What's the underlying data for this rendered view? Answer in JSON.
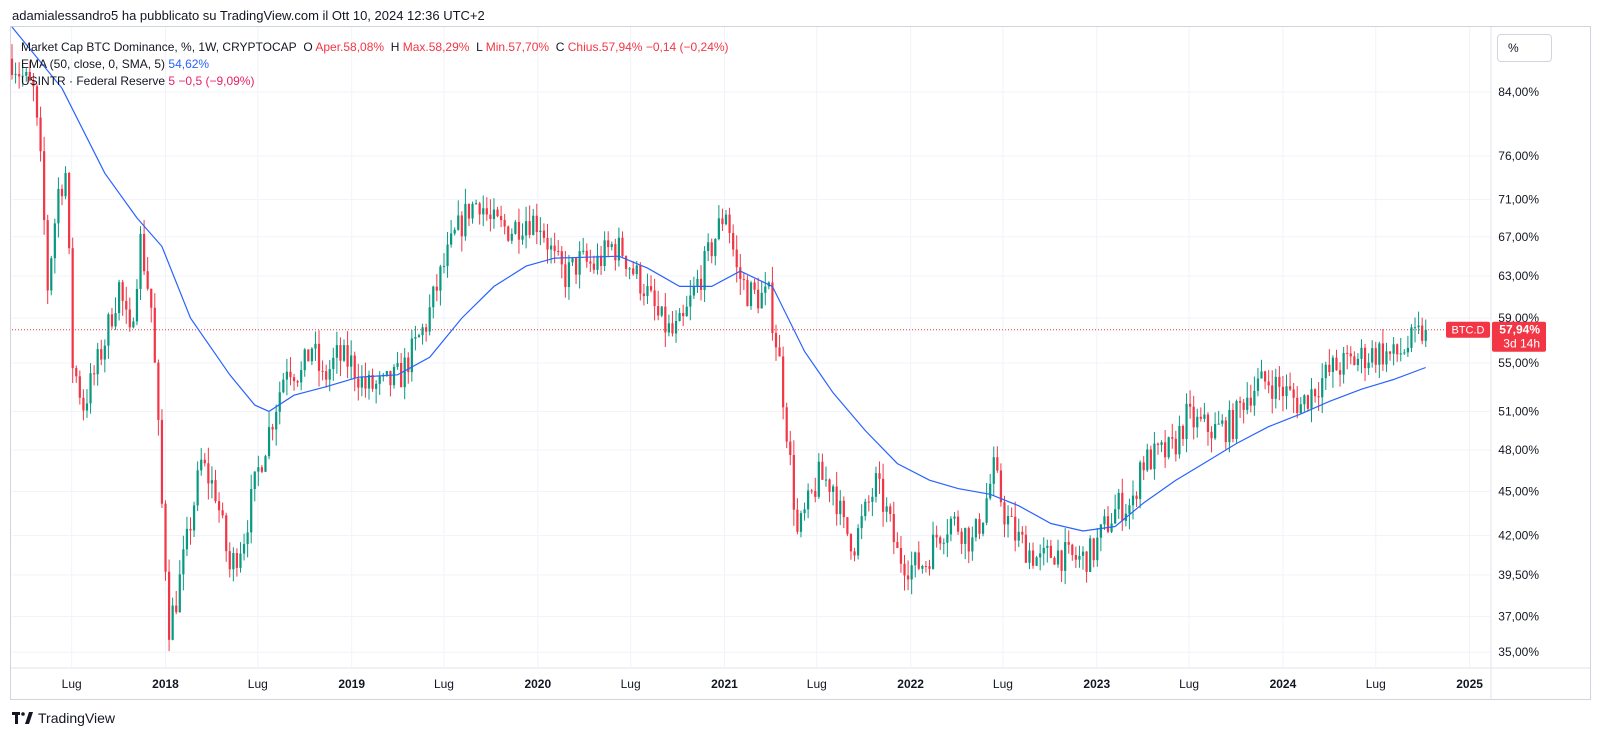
{
  "header": {
    "text": "adamialessandro5 ha pubblicato su TradingView.com il Ott 10, 2024 12:36 UTC+2"
  },
  "legend": {
    "main": {
      "label": "Market Cap BTC Dominance, %, 1W, CRYPTOCAP",
      "o_label": "O",
      "o_text": "Aper.58,08%",
      "h_label": "H",
      "h_text": "Max.58,29%",
      "l_label": "L",
      "l_text": "Min.57,70%",
      "c_label": "C",
      "c_text": "Chius.57,94%",
      "change": "−0,14 (−0,24%)"
    },
    "ema": {
      "label": "EMA (50, close, 0, SMA, 5)",
      "value": "54,62%"
    },
    "usintr": {
      "label": "USINTR · Federal Reserve",
      "value": "5",
      "change": "−0,5 (−9,09%)"
    }
  },
  "scale_button": {
    "label": "%"
  },
  "footer": {
    "brand": "TradingView"
  },
  "colors": {
    "up": "#089981",
    "down": "#f23645",
    "ema": "#2962ff",
    "last_price": "#f23645",
    "grid": "#f0f3fa"
  },
  "chart_data": {
    "type": "candlestick",
    "title": "Market Cap BTC Dominance, %, 1W, CRYPTOCAP",
    "y_scale": "log",
    "y_ticks": [
      {
        "value": 84,
        "label": "84,00%"
      },
      {
        "value": 76,
        "label": "76,00%"
      },
      {
        "value": 71,
        "label": "71,00%"
      },
      {
        "value": 67,
        "label": "67,00%"
      },
      {
        "value": 63,
        "label": "63,00%"
      },
      {
        "value": 59,
        "label": "59,00%"
      },
      {
        "value": 55,
        "label": "55,00%"
      },
      {
        "value": 51,
        "label": "51,00%"
      },
      {
        "value": 48,
        "label": "48,00%"
      },
      {
        "value": 45,
        "label": "45,00%"
      },
      {
        "value": 42,
        "label": "42,00%"
      },
      {
        "value": 39.5,
        "label": "39,50%"
      },
      {
        "value": 37,
        "label": "37,00%"
      },
      {
        "value": 35,
        "label": "35,00%"
      }
    ],
    "x_ticks": [
      {
        "date": "2017-07-01",
        "label": "Lug",
        "bold": false
      },
      {
        "date": "2018-01-01",
        "label": "2018",
        "bold": true
      },
      {
        "date": "2018-07-01",
        "label": "Lug",
        "bold": false
      },
      {
        "date": "2019-01-01",
        "label": "2019",
        "bold": true
      },
      {
        "date": "2019-07-01",
        "label": "Lug",
        "bold": false
      },
      {
        "date": "2020-01-01",
        "label": "2020",
        "bold": true
      },
      {
        "date": "2020-07-01",
        "label": "Lug",
        "bold": false
      },
      {
        "date": "2021-01-01",
        "label": "2021",
        "bold": true
      },
      {
        "date": "2021-07-01",
        "label": "Lug",
        "bold": false
      },
      {
        "date": "2022-01-01",
        "label": "2022",
        "bold": true
      },
      {
        "date": "2022-07-01",
        "label": "Lug",
        "bold": false
      },
      {
        "date": "2023-01-01",
        "label": "2023",
        "bold": true
      },
      {
        "date": "2023-07-01",
        "label": "Lug",
        "bold": false
      },
      {
        "date": "2024-01-01",
        "label": "2024",
        "bold": true
      },
      {
        "date": "2024-07-01",
        "label": "Lug",
        "bold": false
      },
      {
        "date": "2025-01-01",
        "label": "2025",
        "bold": true
      }
    ],
    "x_range": [
      "2017-03-06",
      "2025-02-10"
    ],
    "y_range": [
      34.2,
      93
    ],
    "last_price": {
      "value": 57.94,
      "symbol": "BTC.D",
      "label": "57,94%",
      "countdown": "3d 14h"
    },
    "price_path": [
      [
        "2017-03-06",
        88.5
      ],
      [
        "2017-03-27",
        86.0
      ],
      [
        "2017-04-17",
        84.0
      ],
      [
        "2017-05-01",
        75.0
      ],
      [
        "2017-05-15",
        62.0
      ],
      [
        "2017-06-05",
        72.0
      ],
      [
        "2017-06-19",
        74.0
      ],
      [
        "2017-07-03",
        55.0
      ],
      [
        "2017-07-24",
        51.5
      ],
      [
        "2017-08-14",
        54.0
      ],
      [
        "2017-09-04",
        57.0
      ],
      [
        "2017-10-02",
        62.0
      ],
      [
        "2017-10-23",
        57.0
      ],
      [
        "2017-11-13",
        66.5
      ],
      [
        "2017-12-04",
        60.0
      ],
      [
        "2017-12-25",
        44.0
      ],
      [
        "2018-01-08",
        36.5
      ],
      [
        "2018-01-22",
        38.0
      ],
      [
        "2018-02-12",
        41.5
      ],
      [
        "2018-03-12",
        47.0
      ],
      [
        "2018-04-09",
        45.0
      ],
      [
        "2018-05-07",
        39.8
      ],
      [
        "2018-06-04",
        42.0
      ],
      [
        "2018-07-02",
        46.5
      ],
      [
        "2018-07-30",
        50.5
      ],
      [
        "2018-08-27",
        55.0
      ],
      [
        "2018-09-24",
        54.0
      ],
      [
        "2018-10-15",
        56.5
      ],
      [
        "2018-11-05",
        53.5
      ],
      [
        "2018-12-03",
        55.5
      ],
      [
        "2018-12-31",
        55.0
      ],
      [
        "2019-01-28",
        53.0
      ],
      [
        "2019-03-04",
        53.0
      ],
      [
        "2019-04-08",
        54.0
      ],
      [
        "2019-05-06",
        56.5
      ],
      [
        "2019-05-27",
        58.5
      ],
      [
        "2019-06-24",
        63.0
      ],
      [
        "2019-07-22",
        67.0
      ],
      [
        "2019-08-19",
        70.0
      ],
      [
        "2019-09-09",
        71.0
      ],
      [
        "2019-09-30",
        68.5
      ],
      [
        "2019-10-21",
        68.0
      ],
      [
        "2019-11-11",
        67.8
      ],
      [
        "2019-12-09",
        69.0
      ],
      [
        "2020-01-06",
        68.5
      ],
      [
        "2020-02-03",
        64.5
      ],
      [
        "2020-02-24",
        63.0
      ],
      [
        "2020-03-23",
        64.5
      ],
      [
        "2020-04-20",
        64.0
      ],
      [
        "2020-05-25",
        66.0
      ],
      [
        "2020-06-15",
        65.5
      ],
      [
        "2020-07-06",
        63.5
      ],
      [
        "2020-07-27",
        62.0
      ],
      [
        "2020-08-24",
        59.0
      ],
      [
        "2020-09-21",
        57.5
      ],
      [
        "2020-10-12",
        58.5
      ],
      [
        "2020-11-02",
        61.5
      ],
      [
        "2020-11-23",
        64.0
      ],
      [
        "2020-12-14",
        67.0
      ],
      [
        "2021-01-04",
        70.0
      ],
      [
        "2021-01-25",
        63.5
      ],
      [
        "2021-02-15",
        61.5
      ],
      [
        "2021-03-08",
        61.0
      ],
      [
        "2021-03-29",
        61.0
      ],
      [
        "2021-04-19",
        55.0
      ],
      [
        "2021-05-10",
        47.0
      ],
      [
        "2021-05-24",
        42.0
      ],
      [
        "2021-06-14",
        44.0
      ],
      [
        "2021-07-05",
        46.0
      ],
      [
        "2021-08-02",
        45.5
      ],
      [
        "2021-08-23",
        42.5
      ],
      [
        "2021-09-13",
        41.5
      ],
      [
        "2021-10-04",
        43.5
      ],
      [
        "2021-10-25",
        45.5
      ],
      [
        "2021-11-15",
        43.5
      ],
      [
        "2021-12-06",
        40.8
      ],
      [
        "2022-01-03",
        40.0
      ],
      [
        "2022-01-31",
        40.3
      ],
      [
        "2022-02-21",
        42.0
      ],
      [
        "2022-03-21",
        43.0
      ],
      [
        "2022-04-11",
        42.5
      ],
      [
        "2022-05-02",
        41.5
      ],
      [
        "2022-05-23",
        43.5
      ],
      [
        "2022-06-13",
        46.5
      ],
      [
        "2022-07-04",
        43.5
      ],
      [
        "2022-07-25",
        42.0
      ],
      [
        "2022-08-22",
        41.0
      ],
      [
        "2022-09-12",
        40.3
      ],
      [
        "2022-10-10",
        41.0
      ],
      [
        "2022-11-07",
        40.5
      ],
      [
        "2022-12-05",
        40.5
      ],
      [
        "2022-12-26",
        41.0
      ],
      [
        "2023-01-16",
        42.5
      ],
      [
        "2023-02-13",
        44.0
      ],
      [
        "2023-03-13",
        44.0
      ],
      [
        "2023-03-27",
        47.0
      ],
      [
        "2023-04-24",
        47.5
      ],
      [
        "2023-05-29",
        48.0
      ],
      [
        "2023-06-26",
        50.5
      ],
      [
        "2023-07-17",
        50.0
      ],
      [
        "2023-08-21",
        49.5
      ],
      [
        "2023-09-25",
        50.0
      ],
      [
        "2023-10-16",
        52.0
      ],
      [
        "2023-11-06",
        53.0
      ],
      [
        "2023-12-04",
        53.5
      ],
      [
        "2024-01-08",
        52.5
      ],
      [
        "2024-02-05",
        51.5
      ],
      [
        "2024-03-04",
        53.0
      ],
      [
        "2024-04-08",
        54.5
      ],
      [
        "2024-05-06",
        55.0
      ],
      [
        "2024-06-03",
        55.5
      ],
      [
        "2024-07-08",
        56.0
      ],
      [
        "2024-08-05",
        55.5
      ],
      [
        "2024-09-02",
        56.5
      ],
      [
        "2024-10-07",
        57.94
      ]
    ],
    "ema_series": {
      "name": "EMA (50, close, 0, SMA, 5)",
      "points": [
        [
          "2017-03-06",
          93.0
        ],
        [
          "2017-06-12",
          84.5
        ],
        [
          "2017-09-04",
          74.0
        ],
        [
          "2017-11-06",
          69.0
        ],
        [
          "2017-12-25",
          66.0
        ],
        [
          "2018-02-19",
          59.0
        ],
        [
          "2018-05-07",
          54.0
        ],
        [
          "2018-06-25",
          51.5
        ],
        [
          "2018-07-23",
          51.0
        ],
        [
          "2018-09-10",
          52.3
        ],
        [
          "2018-11-12",
          53.0
        ],
        [
          "2019-01-14",
          53.8
        ],
        [
          "2019-04-01",
          54.0
        ],
        [
          "2019-06-03",
          55.5
        ],
        [
          "2019-08-05",
          59.0
        ],
        [
          "2019-10-07",
          62.0
        ],
        [
          "2019-12-09",
          64.0
        ],
        [
          "2020-02-03",
          64.8
        ],
        [
          "2020-04-06",
          64.9
        ],
        [
          "2020-06-08",
          65.0
        ],
        [
          "2020-08-03",
          63.8
        ],
        [
          "2020-10-05",
          62.0
        ],
        [
          "2020-12-07",
          62.0
        ],
        [
          "2021-02-01",
          63.5
        ],
        [
          "2021-04-05",
          62.0
        ],
        [
          "2021-06-07",
          56.0
        ],
        [
          "2021-08-02",
          52.5
        ],
        [
          "2021-10-04",
          49.5
        ],
        [
          "2021-12-06",
          47.0
        ],
        [
          "2022-02-07",
          45.8
        ],
        [
          "2022-04-04",
          45.2
        ],
        [
          "2022-06-06",
          44.8
        ],
        [
          "2022-08-01",
          44.0
        ],
        [
          "2022-10-03",
          42.8
        ],
        [
          "2022-12-05",
          42.3
        ],
        [
          "2023-02-06",
          42.6
        ],
        [
          "2023-04-03",
          44.2
        ],
        [
          "2023-06-05",
          45.8
        ],
        [
          "2023-08-07",
          47.2
        ],
        [
          "2023-10-02",
          48.5
        ],
        [
          "2023-12-04",
          49.8
        ],
        [
          "2024-02-05",
          50.8
        ],
        [
          "2024-04-01",
          51.8
        ],
        [
          "2024-06-03",
          52.8
        ],
        [
          "2024-08-05",
          53.6
        ],
        [
          "2024-10-07",
          54.62
        ]
      ]
    },
    "candle_width_days": 7
  }
}
